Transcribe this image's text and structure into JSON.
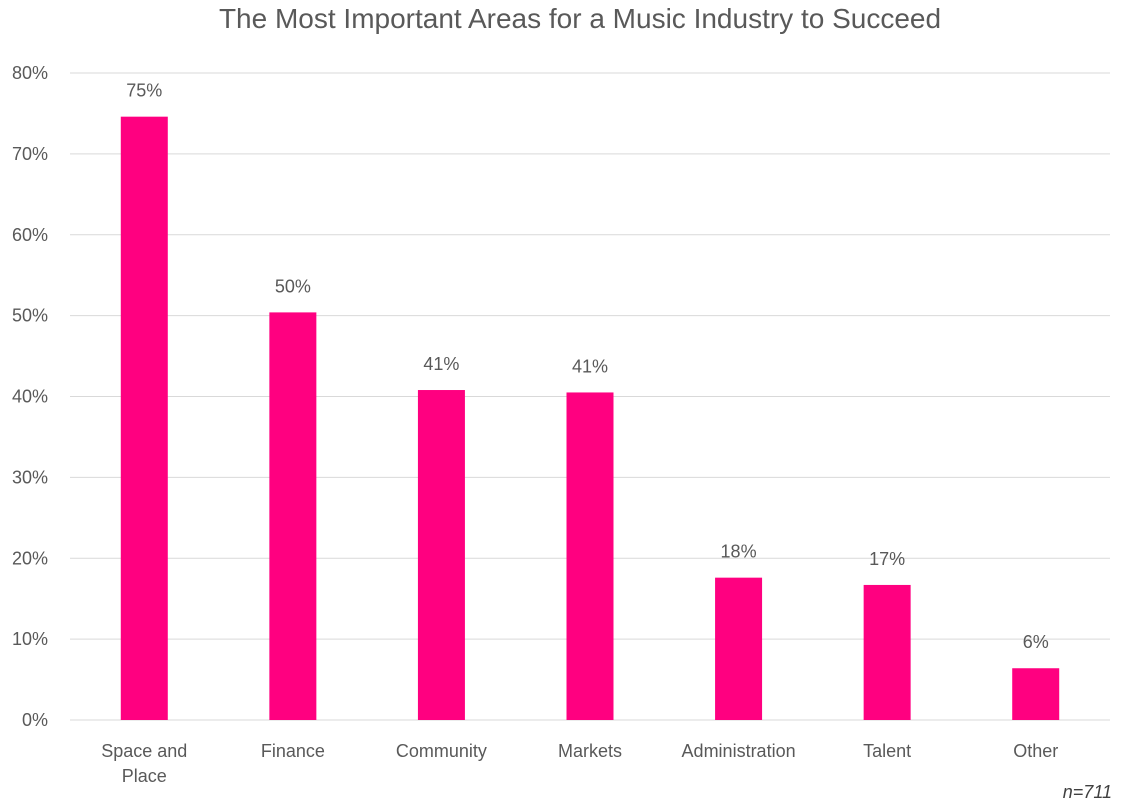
{
  "chart_data": {
    "type": "bar",
    "title": "The Most Important Areas for a Music Industry to Succeed",
    "categories": [
      [
        "Space and",
        "Place"
      ],
      [
        "Finance"
      ],
      [
        "Community"
      ],
      [
        "Markets"
      ],
      [
        "Administration"
      ],
      [
        "Talent"
      ],
      [
        "Other"
      ]
    ],
    "values": [
      74.6,
      50.4,
      40.8,
      40.5,
      17.6,
      16.7,
      6.4
    ],
    "data_labels": [
      "75%",
      "50%",
      "41%",
      "41%",
      "18%",
      "17%",
      "6%"
    ],
    "yticks": [
      "0%",
      "10%",
      "20%",
      "30%",
      "40%",
      "50%",
      "60%",
      "70%",
      "80%"
    ],
    "ylim": [
      0,
      80
    ],
    "grid": true,
    "legend": "none",
    "colors": {
      "bar": "#ff0080",
      "grid": "#d9d9d9",
      "text": "#595959"
    },
    "note": "n=711"
  }
}
